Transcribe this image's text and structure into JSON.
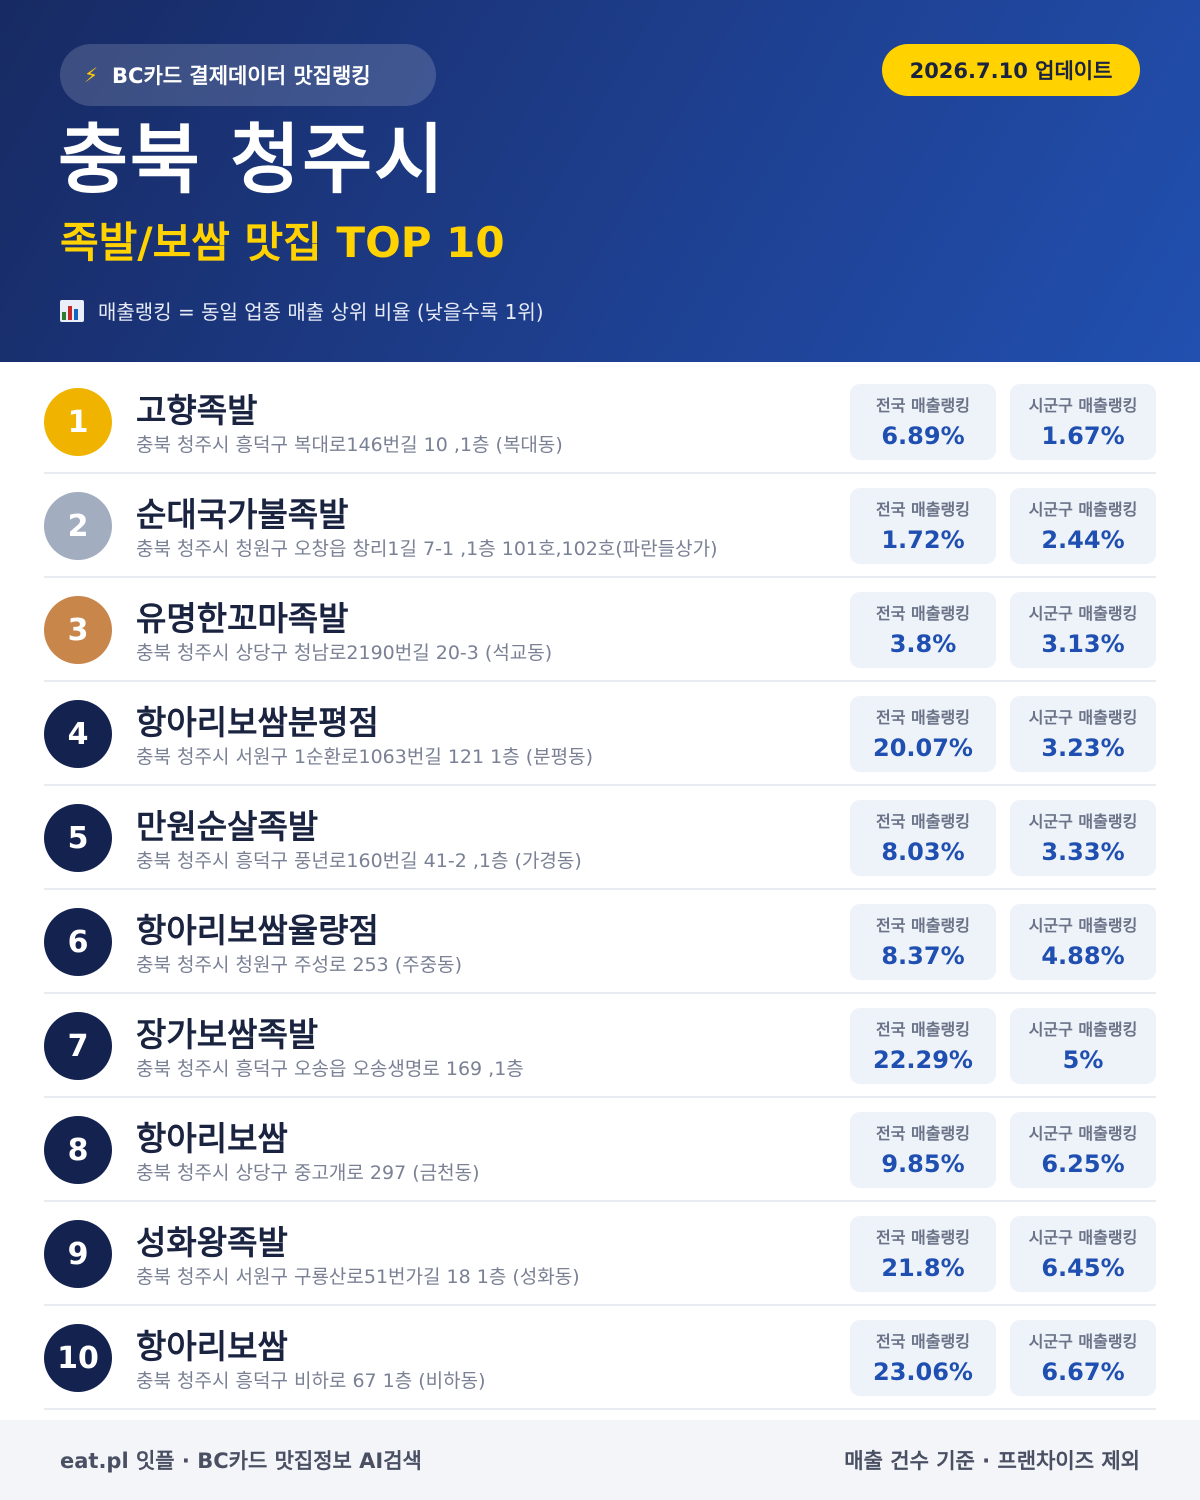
{
  "header": {
    "badge_icon": "lightning-icon",
    "badge_text": "BC카드 결제데이터 맛집랭킹",
    "update_label": "2026.7.10 업데이트",
    "city": "충북 청주시",
    "subtitle": "족발/보쌈 맛집 TOP 10",
    "note_icon": "bar-chart-icon",
    "note_text": "매출랭킹 = 동일 업종 매출 상위 비율 (낮을수록 1위)"
  },
  "colors": {
    "header_start": "#172a63",
    "header_end": "#2150b0",
    "accent_yellow": "#ffd200",
    "gold": "#f0b400",
    "silver": "#a3adc0",
    "bronze": "#c8864a",
    "navy": "#14224f",
    "value_blue": "#1f4fb0"
  },
  "ranking": [
    {
      "rank": "1",
      "medal": "gold",
      "name": "고향족발",
      "address": "충북 청주시 흥덕구 복대로146번길 10 ,1층 (복대동)",
      "national_label": "전국 매출랭킹",
      "national_value": "6.89%",
      "local_label": "시군구 매출랭킹",
      "local_value": "1.67%"
    },
    {
      "rank": "2",
      "medal": "silver",
      "name": "순대국가불족발",
      "address": "충북 청주시 청원구 오창읍 창리1길 7-1 ,1층 101호,102호(파란들상가)",
      "national_label": "전국 매출랭킹",
      "national_value": "1.72%",
      "local_label": "시군구 매출랭킹",
      "local_value": "2.44%"
    },
    {
      "rank": "3",
      "medal": "bronze",
      "name": "유명한꼬마족발",
      "address": "충북 청주시 상당구 청남로2190번길 20-3 (석교동)",
      "national_label": "전국 매출랭킹",
      "national_value": "3.8%",
      "local_label": "시군구 매출랭킹",
      "local_value": "3.13%"
    },
    {
      "rank": "4",
      "medal": "navy",
      "name": "항아리보쌈분평점",
      "address": "충북 청주시 서원구 1순환로1063번길 121 1층 (분평동)",
      "national_label": "전국 매출랭킹",
      "national_value": "20.07%",
      "local_label": "시군구 매출랭킹",
      "local_value": "3.23%"
    },
    {
      "rank": "5",
      "medal": "navy",
      "name": "만원순살족발",
      "address": "충북 청주시 흥덕구 풍년로160번길 41-2 ,1층 (가경동)",
      "national_label": "전국 매출랭킹",
      "national_value": "8.03%",
      "local_label": "시군구 매출랭킹",
      "local_value": "3.33%"
    },
    {
      "rank": "6",
      "medal": "navy",
      "name": "항아리보쌈율량점",
      "address": "충북 청주시 청원구 주성로 253 (주중동)",
      "national_label": "전국 매출랭킹",
      "national_value": "8.37%",
      "local_label": "시군구 매출랭킹",
      "local_value": "4.88%"
    },
    {
      "rank": "7",
      "medal": "navy",
      "name": "장가보쌈족발",
      "address": "충북 청주시 흥덕구 오송읍 오송생명로 169 ,1층",
      "national_label": "전국 매출랭킹",
      "national_value": "22.29%",
      "local_label": "시군구 매출랭킹",
      "local_value": "5%"
    },
    {
      "rank": "8",
      "medal": "navy",
      "name": "항아리보쌈",
      "address": "충북 청주시 상당구 중고개로 297 (금천동)",
      "national_label": "전국 매출랭킹",
      "national_value": "9.85%",
      "local_label": "시군구 매출랭킹",
      "local_value": "6.25%"
    },
    {
      "rank": "9",
      "medal": "navy",
      "name": "성화왕족발",
      "address": "충북 청주시 서원구 구룡산로51번가길 18 1층 (성화동)",
      "national_label": "전국 매출랭킹",
      "national_value": "21.8%",
      "local_label": "시군구 매출랭킹",
      "local_value": "6.45%"
    },
    {
      "rank": "10",
      "medal": "navy",
      "name": "항아리보쌈",
      "address": "충북 청주시 흥덕구 비하로 67 1층 (비하동)",
      "national_label": "전국 매출랭킹",
      "national_value": "23.06%",
      "local_label": "시군구 매출랭킹",
      "local_value": "6.67%"
    }
  ],
  "footer": {
    "left": "eat.pl 잇플 · BC카드 맛집정보 AI검색",
    "right": "매출 건수 기준 · 프랜차이즈 제외"
  }
}
